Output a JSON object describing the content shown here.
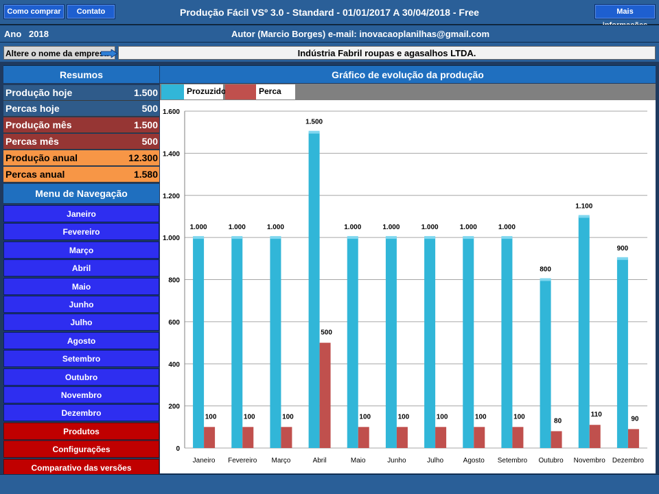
{
  "header": {
    "btn_buy": "Como comprar",
    "btn_contact": "Contato",
    "title": "Produção Fácil  VSº 3.0 - Standard - 01/01/2017 A 30/04/2018 - Free",
    "btn_more": "Mais informações"
  },
  "info": {
    "year_label": "Ano",
    "year_value": "2018",
    "author": "Autor  (Marcio Borges)  e-mail: inovacaoplanilhas@gmail.com"
  },
  "company": {
    "label": "Altere o nome da empresa",
    "name": "Indústria Fabril roupas e agasalhos LTDA."
  },
  "summary": {
    "title": "Resumos",
    "rows": [
      {
        "label": "Produção hoje",
        "value": "1.500",
        "color": "#2f5b8a"
      },
      {
        "label": "Percas hoje",
        "value": "500",
        "color": "#2f5b8a"
      },
      {
        "label": "Produção mês",
        "value": "1.500",
        "color": "#963634"
      },
      {
        "label": "Percas mês",
        "value": "500",
        "color": "#963634"
      },
      {
        "label": "Produção anual",
        "value": "12.300",
        "color": "#f79646"
      },
      {
        "label": "Percas anual",
        "value": "1.580",
        "color": "#f79646"
      }
    ]
  },
  "nav": {
    "title": "Menu de Navegação",
    "months": [
      "Janeiro",
      "Fevereiro",
      "Março",
      "Abril",
      "Maio",
      "Junho",
      "Julho",
      "Agosto",
      "Setembro",
      "Outubro",
      "Novembro",
      "Dezembro"
    ],
    "extras": [
      "Produtos",
      "Configurações",
      "Comparativo das versões"
    ]
  },
  "chart_section_title": "Gráfico de evolução da produção",
  "chart_data": {
    "type": "bar",
    "categories": [
      "Janeiro",
      "Fevereiro",
      "Março",
      "Abril",
      "Maio",
      "Junho",
      "Julho",
      "Agosto",
      "Setembro",
      "Outubro",
      "Novembro",
      "Dezembro"
    ],
    "series": [
      {
        "name": "Prozuzido",
        "color": "#31b6d8",
        "values": [
          1000,
          1000,
          1000,
          1500,
          1000,
          1000,
          1000,
          1000,
          1000,
          800,
          1100,
          900
        ],
        "labels": [
          "1.000",
          "1.000",
          "1.000",
          "1.500",
          "1.000",
          "1.000",
          "1.000",
          "1.000",
          "1.000",
          "800",
          "1.100",
          "900"
        ]
      },
      {
        "name": "Perca",
        "color": "#c0504d",
        "values": [
          100,
          100,
          100,
          500,
          100,
          100,
          100,
          100,
          100,
          80,
          110,
          90
        ],
        "labels": [
          "100",
          "100",
          "100",
          "500",
          "100",
          "100",
          "100",
          "100",
          "100",
          "80",
          "110",
          "90"
        ]
      }
    ],
    "ylim": [
      0,
      1600
    ],
    "yticks": [
      0,
      200,
      400,
      600,
      800,
      1000,
      1200,
      1400,
      1600
    ],
    "ytick_labels": [
      "0",
      "200",
      "400",
      "600",
      "800",
      "1.000",
      "1.200",
      "1.400",
      "1.600"
    ],
    "grid": true,
    "legend": "top-left"
  }
}
